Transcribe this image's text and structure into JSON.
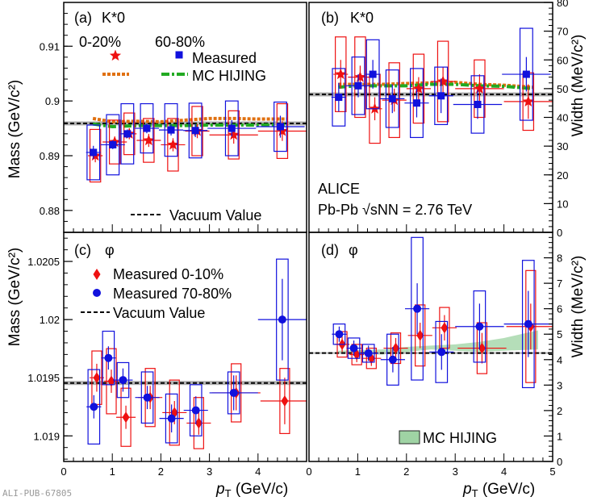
{
  "chart_data": [
    {
      "type": "scatter",
      "panel": "(a)",
      "particle": "K*0",
      "quantity": "Mass",
      "ylabel": "Mass (GeV/c²)",
      "ylim": [
        0.876,
        0.918
      ],
      "yticks": [
        "0.88",
        "0.89",
        "0.9",
        "0.91"
      ],
      "xlim": [
        0,
        5
      ],
      "xticks": [
        "0",
        "1",
        "2",
        "3",
        "4"
      ],
      "vacuum": 0.8959,
      "legend": {
        "head_1": "0-20%",
        "head_2": "60-80%",
        "measured": "Measured",
        "mc": "MC HIJING",
        "vacuum": "Vacuum Value"
      },
      "series": [
        {
          "name": "0-20%",
          "color": "#ee1111",
          "marker": "star",
          "x": [
            0.65,
            1.05,
            1.35,
            1.75,
            2.25,
            2.75,
            3.5,
            4.5
          ],
          "y": [
            0.89,
            0.8925,
            0.894,
            0.8928,
            0.892,
            0.8945,
            0.8938,
            0.8945
          ],
          "xerr": [
            0.15,
            0.25,
            0.15,
            0.25,
            0.25,
            0.25,
            0.5,
            0.5
          ],
          "yerr": [
            0.0012,
            0.001,
            0.001,
            0.0012,
            0.0012,
            0.0013,
            0.0016,
            0.0018
          ],
          "sys": [
            0.0048,
            0.004,
            0.0038,
            0.004,
            0.0048,
            0.0045,
            0.0044,
            0.005
          ],
          "boxw": 0.11
        },
        {
          "name": "60-80%",
          "color": "#1111dd",
          "marker": "square",
          "x": [
            0.61,
            1.01,
            1.31,
            1.71,
            2.21,
            2.71,
            3.46,
            4.46
          ],
          "y": [
            0.8906,
            0.892,
            0.894,
            0.895,
            0.8947,
            0.8946,
            0.895,
            0.8953
          ],
          "xerr": [
            0.15,
            0.25,
            0.15,
            0.25,
            0.25,
            0.25,
            0.5,
            0.5
          ],
          "yerr": [
            0.0012,
            0.0008,
            0.0008,
            0.0009,
            0.001,
            0.0012,
            0.0015,
            0.002
          ],
          "sys": [
            0.005,
            0.0055,
            0.0055,
            0.0045,
            0.0048,
            0.005,
            0.005,
            0.0045
          ],
          "boxw": 0.13
        }
      ],
      "mc": [
        {
          "name": "MC HIJING 0-20%",
          "color": "#e07010",
          "x": [
            0.6,
            1.0,
            1.5,
            2.0,
            2.5,
            3.0,
            3.5,
            4.0,
            4.6
          ],
          "y": [
            0.8968,
            0.8962,
            0.8963,
            0.8962,
            0.8965,
            0.8968,
            0.8968,
            0.8967,
            0.8967
          ]
        },
        {
          "name": "MC HIJING 60-80%",
          "color": "#22aa22",
          "x": [
            0.6,
            1.0,
            1.5,
            2.0,
            2.5,
            3.0,
            3.5,
            4.0,
            4.6
          ],
          "y": [
            0.8958,
            0.8953,
            0.8955,
            0.8955,
            0.8955,
            0.8956,
            0.8956,
            0.8956,
            0.8957
          ]
        }
      ]
    },
    {
      "type": "scatter",
      "panel": "(b)",
      "particle": "K*0",
      "quantity": "Width",
      "ylabel": "Width (MeV/c²)",
      "ylim": [
        0,
        80
      ],
      "yticks": [
        "0",
        "10",
        "20",
        "30",
        "40",
        "50",
        "60",
        "70",
        "80"
      ],
      "xlim": [
        0,
        5
      ],
      "xticks": [
        "0",
        "1",
        "2",
        "3",
        "4"
      ],
      "vacuum": 48,
      "annotation_1": "ALICE",
      "annotation_2": "Pb-Pb √sNN = 2.76 TeV",
      "series": [
        {
          "name": "0-20%",
          "color": "#ee1111",
          "marker": "star",
          "x": [
            0.65,
            1.05,
            1.35,
            1.75,
            2.25,
            2.75,
            3.5,
            4.5
          ],
          "y": [
            55,
            54,
            43,
            46,
            50,
            52.5,
            50,
            45.5
          ],
          "xerr": [
            0.15,
            0.25,
            0.15,
            0.25,
            0.25,
            0.25,
            0.5,
            0.5
          ],
          "yerr": [
            5,
            4,
            4,
            4,
            4,
            5,
            5,
            6
          ],
          "sys": [
            13,
            14,
            12,
            13,
            12,
            14,
            10,
            10
          ],
          "boxw": 0.11
        },
        {
          "name": "60-80%",
          "color": "#1111dd",
          "marker": "square",
          "x": [
            0.61,
            1.01,
            1.31,
            1.71,
            2.21,
            2.71,
            3.46,
            4.46
          ],
          "y": [
            47,
            51,
            55,
            46.5,
            45,
            47.5,
            44.5,
            55
          ],
          "xerr": [
            0.15,
            0.25,
            0.15,
            0.25,
            0.25,
            0.25,
            0.5,
            0.5
          ],
          "yerr": [
            5,
            4,
            5,
            5,
            5,
            6,
            5,
            6
          ],
          "sys": [
            10,
            10,
            12,
            10,
            12,
            10,
            10,
            16
          ],
          "boxw": 0.13
        }
      ],
      "mc": [
        {
          "name": "MC HIJING 0-20%",
          "color": "#e07010",
          "x": [
            0.6,
            1.0,
            1.5,
            2.0,
            2.5,
            3.0,
            3.5,
            4.0,
            4.6
          ],
          "y": [
            51.5,
            51.5,
            51.5,
            51.8,
            52,
            52.2,
            51.5,
            51.2,
            50.5
          ]
        },
        {
          "name": "MC HIJING 60-80%",
          "color": "#22aa22",
          "x": [
            0.6,
            1.0,
            1.5,
            2.0,
            2.5,
            3.0,
            3.5,
            4.0,
            4.6
          ],
          "y": [
            50.5,
            51,
            51,
            51,
            51.5,
            51.5,
            51,
            50.8,
            50
          ]
        }
      ]
    },
    {
      "type": "scatter",
      "panel": "(c)",
      "particle": "φ",
      "quantity": "Mass",
      "ylabel": "Mass (GeV/c²)",
      "ylim": [
        1.01878,
        1.02075
      ],
      "yticks": [
        "1.019",
        "1.0195",
        "1.02",
        "1.0205"
      ],
      "xlim": [
        0,
        5
      ],
      "xticks": [
        "0",
        "1",
        "2",
        "3",
        "4"
      ],
      "vacuum": 1.019455,
      "legend": {
        "red": "Measured 0-10%",
        "blue": "Measured 70-80%",
        "vacuum": "Vacuum Value"
      },
      "series": [
        {
          "name": "Measured 0-10%",
          "color": "#ee1111",
          "marker": "diamond",
          "x": [
            0.68,
            0.98,
            1.28,
            1.78,
            2.28,
            2.78,
            3.55,
            4.55
          ],
          "y": [
            1.0195,
            1.01947,
            1.01916,
            1.01933,
            1.0192,
            1.01911,
            1.01937,
            1.0193
          ],
          "xerr": [
            0.15,
            0.15,
            0.2,
            0.25,
            0.25,
            0.25,
            0.5,
            0.5
          ],
          "yerr": [
            0.00012,
            0.0001,
            0.0001,
            0.0001,
            0.0001,
            0.0001,
            0.00015,
            0.0002
          ],
          "sys": [
            0.00023,
            0.00028,
            0.00025,
            0.00025,
            0.00028,
            0.00022,
            0.00025,
            0.00028
          ],
          "boxw": 0.1
        },
        {
          "name": "Measured 70-80%",
          "color": "#1111dd",
          "marker": "circle",
          "x": [
            0.62,
            0.92,
            1.22,
            1.72,
            2.22,
            2.72,
            3.5,
            4.5
          ],
          "y": [
            1.01925,
            1.01967,
            1.01948,
            1.01933,
            1.01915,
            1.01922,
            1.01937,
            1.02
          ],
          "xerr": [
            0.15,
            0.15,
            0.2,
            0.25,
            0.25,
            0.25,
            0.5,
            0.5
          ],
          "yerr": [
            0.0001,
            0.0001,
            0.0001,
            0.0001,
            0.00012,
            0.00012,
            0.00015,
            0.00035
          ],
          "sys": [
            0.00032,
            0.00023,
            0.00015,
            0.00022,
            0.00021,
            0.00022,
            0.00018,
            0.00052
          ],
          "boxw": 0.12
        }
      ]
    },
    {
      "type": "scatter",
      "panel": "(d)",
      "particle": "φ",
      "quantity": "Width",
      "ylabel": "Width (MeV/c²)",
      "ylim": [
        0,
        9
      ],
      "yticks": [
        "0",
        "1",
        "2",
        "3",
        "4",
        "5",
        "6",
        "7",
        "8"
      ],
      "xlim": [
        0,
        5
      ],
      "xticks": [
        "0",
        "1",
        "2",
        "3",
        "4",
        "5"
      ],
      "vacuum": 4.26,
      "mc_band_label": "MC HIJING",
      "mc_band": {
        "x": [
          0.6,
          1.5,
          2.0,
          2.5,
          3.0,
          3.5,
          4.0,
          4.7
        ],
        "lo": [
          4.25,
          4.2,
          4.3,
          4.4,
          4.35,
          4.3,
          4.35,
          4.4
        ],
        "hi": [
          4.35,
          4.4,
          4.5,
          4.55,
          4.6,
          4.7,
          4.85,
          5.15
        ]
      },
      "series": [
        {
          "name": "Measured 0-10%",
          "color": "#ee1111",
          "marker": "diamond",
          "x": [
            0.68,
            0.98,
            1.28,
            1.78,
            2.28,
            2.78,
            3.55,
            4.55
          ],
          "y": [
            4.6,
            4.2,
            4.05,
            4.45,
            4.95,
            5.25,
            4.45,
            5.3
          ],
          "xerr": [
            0.15,
            0.15,
            0.2,
            0.25,
            0.25,
            0.25,
            0.5,
            0.5
          ],
          "yerr": [
            0.3,
            0.3,
            0.3,
            0.4,
            0.5,
            0.5,
            0.6,
            0.9
          ],
          "sys": [
            0.5,
            0.4,
            0.4,
            0.6,
            1.2,
            0.8,
            1.0,
            2.2
          ],
          "boxw": 0.1
        },
        {
          "name": "Measured 70-80%",
          "color": "#1111dd",
          "marker": "circle",
          "x": [
            0.62,
            0.92,
            1.22,
            1.72,
            2.22,
            2.72,
            3.5,
            4.5
          ],
          "y": [
            5.0,
            4.45,
            4.25,
            4.0,
            6.0,
            4.3,
            5.3,
            5.4
          ],
          "xerr": [
            0.15,
            0.15,
            0.2,
            0.25,
            0.25,
            0.25,
            0.5,
            0.5
          ],
          "yerr": [
            0.3,
            0.3,
            0.3,
            0.5,
            1.0,
            0.7,
            0.9,
            1.3
          ],
          "sys": [
            0.4,
            0.4,
            0.35,
            1.0,
            2.8,
            1.2,
            1.4,
            2.5
          ],
          "boxw": 0.12
        }
      ]
    }
  ],
  "x_axis_title_main": "p",
  "x_axis_title_sub": "T",
  "x_axis_title_unit": "(GeV/c)",
  "publication_id": "ALI-PUB-67805"
}
